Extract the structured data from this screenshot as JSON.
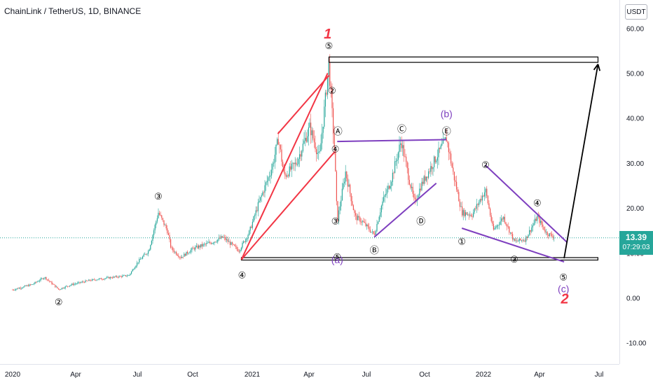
{
  "header": {
    "title": "ChainLink / TetherUS, 1D, BINANCE",
    "currency_button": "USDT"
  },
  "price_tag": {
    "price": "13.39",
    "countdown": "07:29:03"
  },
  "colors": {
    "up": "#26a69a",
    "down": "#ef5350",
    "accent_red": "#f23645",
    "accent_purple": "#7e3fbf",
    "text": "#131722"
  },
  "chart_data": {
    "type": "candlestick",
    "symbol": "ChainLink / TetherUS",
    "interval": "1D",
    "exchange": "BINANCE",
    "currency": "USDT",
    "ylim": [
      -13.5,
      65
    ],
    "y_ticks": [
      "60.00",
      "50.00",
      "40.00",
      "30.00",
      "20.00",
      "10.00",
      "0.00",
      "-10.00"
    ],
    "x_ticks": [
      "2020",
      "Apr",
      "Jul",
      "Oct",
      "2021",
      "Apr",
      "Jul",
      "Oct",
      "2022",
      "Apr",
      "Jul"
    ],
    "last_price": 13.39,
    "price_path": [
      {
        "x": "2020-01-01",
        "y": 1.8
      },
      {
        "x": "2020-02-01",
        "y": 3.0
      },
      {
        "x": "2020-02-20",
        "y": 4.6
      },
      {
        "x": "2020-03-13",
        "y": 1.9
      },
      {
        "x": "2020-04-01",
        "y": 2.9
      },
      {
        "x": "2020-05-01",
        "y": 3.9
      },
      {
        "x": "2020-06-01",
        "y": 4.5
      },
      {
        "x": "2020-07-01",
        "y": 5.0
      },
      {
        "x": "2020-07-15",
        "y": 8.0
      },
      {
        "x": "2020-08-01",
        "y": 10.5
      },
      {
        "x": "2020-08-16",
        "y": 19.0
      },
      {
        "x": "2020-08-30",
        "y": 15.0
      },
      {
        "x": "2020-09-05",
        "y": 11.0
      },
      {
        "x": "2020-09-20",
        "y": 9.0
      },
      {
        "x": "2020-10-10",
        "y": 11.0
      },
      {
        "x": "2020-11-10",
        "y": 12.5
      },
      {
        "x": "2020-11-25",
        "y": 13.5
      },
      {
        "x": "2020-12-20",
        "y": 10.5
      },
      {
        "x": "2021-01-05",
        "y": 14.5
      },
      {
        "x": "2021-01-20",
        "y": 21.0
      },
      {
        "x": "2021-02-10",
        "y": 29.0
      },
      {
        "x": "2021-02-20",
        "y": 35.5
      },
      {
        "x": "2021-03-01",
        "y": 27.0
      },
      {
        "x": "2021-03-20",
        "y": 30.0
      },
      {
        "x": "2021-04-10",
        "y": 38.0
      },
      {
        "x": "2021-04-25",
        "y": 31.0
      },
      {
        "x": "2021-05-10",
        "y": 52.0
      },
      {
        "x": "2021-05-19",
        "y": 32.0
      },
      {
        "x": "2021-05-23",
        "y": 17.0
      },
      {
        "x": "2021-06-05",
        "y": 28.0
      },
      {
        "x": "2021-06-20",
        "y": 18.0
      },
      {
        "x": "2021-07-01",
        "y": 17.0
      },
      {
        "x": "2021-07-20",
        "y": 14.0
      },
      {
        "x": "2021-08-01",
        "y": 21.0
      },
      {
        "x": "2021-08-15",
        "y": 26.0
      },
      {
        "x": "2021-08-31",
        "y": 35.0
      },
      {
        "x": "2021-09-10",
        "y": 28.0
      },
      {
        "x": "2021-09-21",
        "y": 21.0
      },
      {
        "x": "2021-10-01",
        "y": 25.0
      },
      {
        "x": "2021-10-20",
        "y": 30.0
      },
      {
        "x": "2021-11-10",
        "y": 35.5
      },
      {
        "x": "2021-11-20",
        "y": 28.0
      },
      {
        "x": "2021-12-04",
        "y": 19.0
      },
      {
        "x": "2021-12-20",
        "y": 18.5
      },
      {
        "x": "2022-01-10",
        "y": 24.0
      },
      {
        "x": "2022-01-22",
        "y": 15.0
      },
      {
        "x": "2022-02-07",
        "y": 18.0
      },
      {
        "x": "2022-02-24",
        "y": 12.5
      },
      {
        "x": "2022-03-13",
        "y": 13.0
      },
      {
        "x": "2022-04-01",
        "y": 18.0
      },
      {
        "x": "2022-04-15",
        "y": 14.5
      },
      {
        "x": "2022-04-29",
        "y": 13.39
      }
    ],
    "wave_labels": [
      {
        "text": "②",
        "x": "2020-03-13",
        "y": -1.0
      },
      {
        "text": "③",
        "x": "2020-08-16",
        "y": 22.5
      },
      {
        "text": "④",
        "x": "2020-12-25",
        "y": 5.0
      },
      {
        "text": "⑤",
        "x": "2021-05-10",
        "y": 56.0
      },
      {
        "text": "②",
        "x": "2021-05-15",
        "y": 46.0
      },
      {
        "text": "Ⓐ",
        "x": "2021-05-24",
        "y": 37.0
      },
      {
        "text": "④",
        "x": "2021-05-20",
        "y": 33.0
      },
      {
        "text": "③",
        "x": "2021-05-20",
        "y": 17.0
      },
      {
        "text": "⑤",
        "x": "2021-05-23",
        "y": 9.0
      },
      {
        "text": "Ⓑ",
        "x": "2021-07-20",
        "y": 10.5
      },
      {
        "text": "Ⓒ",
        "x": "2021-09-01",
        "y": 37.5
      },
      {
        "text": "Ⓓ",
        "x": "2021-10-01",
        "y": 17.0
      },
      {
        "text": "Ⓔ",
        "x": "2021-11-10",
        "y": 37.0
      },
      {
        "text": "①",
        "x": "2021-12-04",
        "y": 12.5
      },
      {
        "text": "②",
        "x": "2022-01-10",
        "y": 29.5
      },
      {
        "text": "③",
        "x": "2022-02-24",
        "y": 8.5
      },
      {
        "text": "④",
        "x": "2022-04-01",
        "y": 21.0
      },
      {
        "text": "⑤",
        "x": "2022-05-12",
        "y": 4.5
      }
    ],
    "degree_labels": [
      {
        "text": "1",
        "x": "2021-05-08",
        "y": 58.5,
        "color": "red"
      },
      {
        "text": "(a)",
        "x": "2021-05-23",
        "y": 8.5,
        "color": "purple"
      },
      {
        "text": "(b)",
        "x": "2021-11-10",
        "y": 41.0,
        "color": "purple"
      },
      {
        "text": "(c)",
        "x": "2022-05-12",
        "y": 2.0,
        "color": "purple"
      },
      {
        "text": "2",
        "x": "2022-05-14",
        "y": -0.5,
        "color": "red"
      }
    ],
    "trendlines": [
      {
        "color": "red",
        "from": {
          "x": "2020-12-24",
          "y": 8.5
        },
        "to": {
          "x": "2021-05-08",
          "y": 50.0
        }
      },
      {
        "color": "red",
        "from": {
          "x": "2021-02-19",
          "y": 36.5
        },
        "to": {
          "x": "2021-05-10",
          "y": 49.5
        }
      },
      {
        "color": "red",
        "from": {
          "x": "2020-12-24",
          "y": 8.5
        },
        "to": {
          "x": "2021-05-19",
          "y": 32.5
        }
      },
      {
        "color": "purple",
        "from": {
          "x": "2021-05-23",
          "y": 34.8
        },
        "to": {
          "x": "2021-11-10",
          "y": 35.2
        }
      },
      {
        "color": "purple",
        "from": {
          "x": "2021-07-20",
          "y": 13.5
        },
        "to": {
          "x": "2021-10-25",
          "y": 25.5
        }
      },
      {
        "color": "purple",
        "from": {
          "x": "2021-12-04",
          "y": 15.5
        },
        "to": {
          "x": "2022-05-13",
          "y": 8.0
        }
      },
      {
        "color": "purple",
        "from": {
          "x": "2022-01-10",
          "y": 29.5
        },
        "to": {
          "x": "2022-05-18",
          "y": 12.3
        }
      },
      {
        "color": "black",
        "from": {
          "x": "2022-05-13",
          "y": 8.8
        },
        "to": {
          "x": "2022-07-05",
          "y": 52.0
        },
        "arrow": true
      }
    ],
    "rectangles": [
      {
        "x1": "2021-05-10",
        "x2": "2022-07-05",
        "y1": 52.4,
        "y2": 53.6
      },
      {
        "x1": "2020-12-24",
        "x2": "2022-07-05",
        "y1": 8.4,
        "y2": 8.95
      }
    ]
  }
}
